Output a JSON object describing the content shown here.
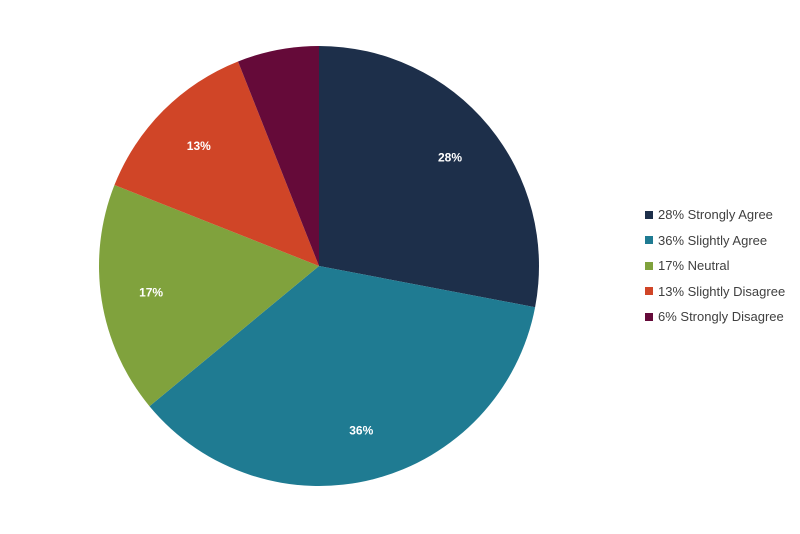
{
  "chart_data": {
    "type": "pie",
    "title": "",
    "start_angle": "12 o'clock",
    "direction": "clockwise",
    "legend_position": "right",
    "slices": [
      {
        "label": "28% Strongly Agree",
        "value": 28,
        "data_label": "28%",
        "color": "#1d2f4a"
      },
      {
        "label": "36% Slightly Agree",
        "value": 36,
        "data_label": "36%",
        "color": "#1f7b92"
      },
      {
        "label": "17% Neutral",
        "value": 17,
        "data_label": "17%",
        "color": "#80a23d"
      },
      {
        "label": "13% Slightly Disagree",
        "value": 13,
        "data_label": "13%",
        "color": "#d04527"
      },
      {
        "label": "6% Strongly Disagree",
        "value": 6,
        "data_label": "",
        "color": "#650a39"
      }
    ]
  }
}
